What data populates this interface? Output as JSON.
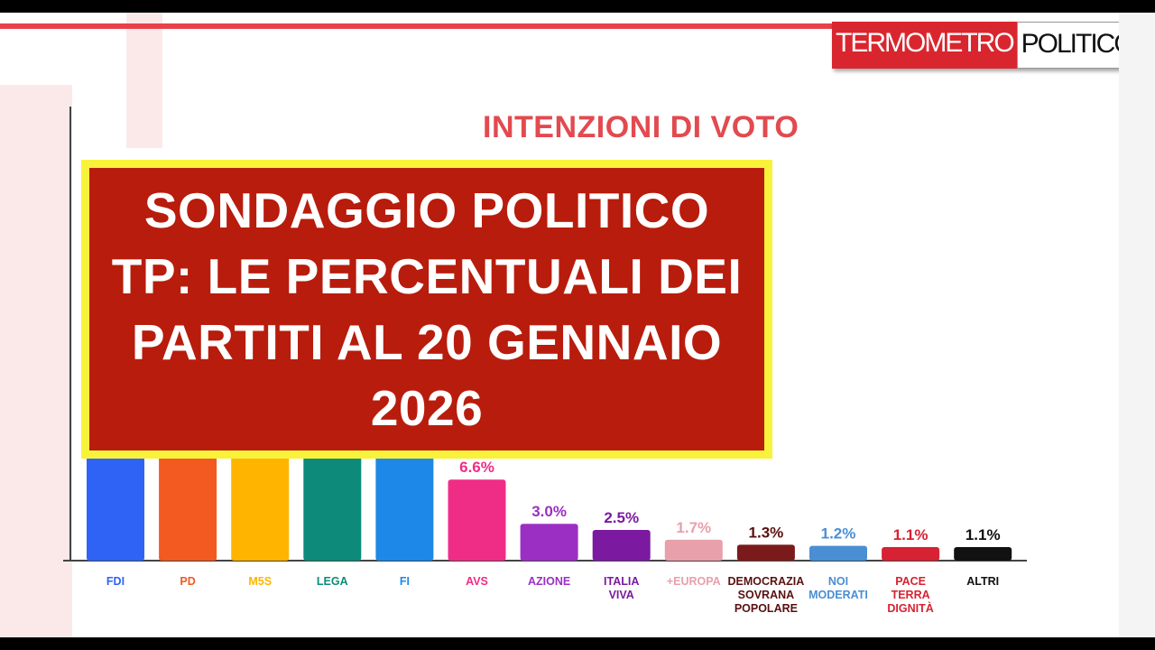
{
  "logo": {
    "part1": "TERMOMETRO",
    "part2": "POLITICO"
  },
  "banner": {
    "text": "SONDAGGIO POLITICO TP: LE PERCENTUALI DEI PARTITI AL 20 GENNAIO 2026"
  },
  "colors": {
    "accent": "#e24a4f",
    "banner_bg": "#b81c0c",
    "banner_border": "#f9f23a"
  },
  "chart_data": {
    "type": "bar",
    "title": "INTENZIONI DI VOTO",
    "categories": [
      "FDI",
      "PD",
      "M5S",
      "LEGA",
      "FI",
      "AVS",
      "AZIONE",
      "ITALIA VIVA",
      "+EUROPA",
      "DEMOCRAZIA SOVRANA POPOLARE",
      "NOI MODERATI",
      "PACE TERRA DIGNITÀ",
      "ALTRI"
    ],
    "values": [
      null,
      null,
      null,
      null,
      null,
      6.6,
      3.0,
      2.5,
      1.7,
      1.3,
      1.2,
      1.1,
      1.1
    ],
    "value_labels": [
      "",
      "",
      "",
      "",
      "",
      "6.6%",
      "3.0%",
      "2.5%",
      "1.7%",
      "1.3%",
      "1.2%",
      "1.1%",
      "1.1%"
    ],
    "bar_colors": [
      "#2f63f5",
      "#f25a22",
      "#ffb400",
      "#0e8a7a",
      "#1e88e8",
      "#f02d86",
      "#9b2fc3",
      "#7b1aa0",
      "#e8a0aa",
      "#7a1a1a",
      "#4a8ed4",
      "#d62232",
      "#111111"
    ],
    "label_colors": [
      "#2f63f5",
      "#f25a22",
      "#ffb400",
      "#0e8a7a",
      "#1e88e8",
      "#f02d86",
      "#9b2fc3",
      "#7b1aa0",
      "#e8a0aa",
      "#5a1010",
      "#4a8ed4",
      "#d62232",
      "#111111"
    ]
  }
}
